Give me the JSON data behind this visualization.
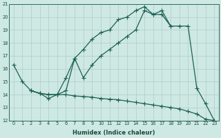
{
  "xlabel": "Humidex (Indice chaleur)",
  "xlim": [
    -0.5,
    23.5
  ],
  "ylim": [
    12,
    21
  ],
  "yticks": [
    12,
    13,
    14,
    15,
    16,
    17,
    18,
    19,
    20,
    21
  ],
  "xticks": [
    0,
    1,
    2,
    3,
    4,
    5,
    6,
    7,
    8,
    9,
    10,
    11,
    12,
    13,
    14,
    15,
    16,
    17,
    18,
    19,
    20,
    21,
    22,
    23
  ],
  "background_color": "#cee8e4",
  "grid_color": "#b0ceca",
  "line_color": "#1a5f52",
  "line1_x": [
    0,
    1,
    2,
    3,
    4,
    5,
    6,
    7,
    8,
    9,
    10,
    11,
    12,
    13,
    14,
    15,
    16,
    17,
    18
  ],
  "line1_y": [
    16.3,
    15.0,
    14.3,
    14.1,
    14.0,
    14.0,
    15.3,
    16.8,
    17.5,
    18.3,
    18.8,
    19.0,
    19.8,
    20.0,
    20.5,
    20.8,
    20.2,
    20.2,
    19.3
  ],
  "line2_x": [
    2,
    3,
    4,
    5,
    6,
    7,
    8,
    9,
    10,
    11,
    12,
    13,
    14,
    15,
    16,
    17,
    18,
    19,
    20,
    21,
    22,
    23
  ],
  "line2_y": [
    14.3,
    14.1,
    13.7,
    14.0,
    14.3,
    16.8,
    15.3,
    16.3,
    17.0,
    17.5,
    18.0,
    18.5,
    19.0,
    20.5,
    20.2,
    20.5,
    19.3,
    19.3,
    19.3,
    14.5,
    13.3,
    12.0
  ],
  "line3_x": [
    2,
    3,
    4,
    5,
    6,
    7,
    8,
    9,
    10,
    11,
    12,
    13,
    14,
    15,
    16,
    17,
    18,
    19,
    20,
    21,
    22,
    23
  ],
  "line3_y": [
    14.3,
    14.1,
    14.0,
    14.0,
    14.0,
    13.9,
    13.85,
    13.8,
    13.7,
    13.65,
    13.6,
    13.5,
    13.4,
    13.3,
    13.2,
    13.1,
    13.0,
    12.9,
    12.7,
    12.5,
    12.1,
    12.0
  ]
}
